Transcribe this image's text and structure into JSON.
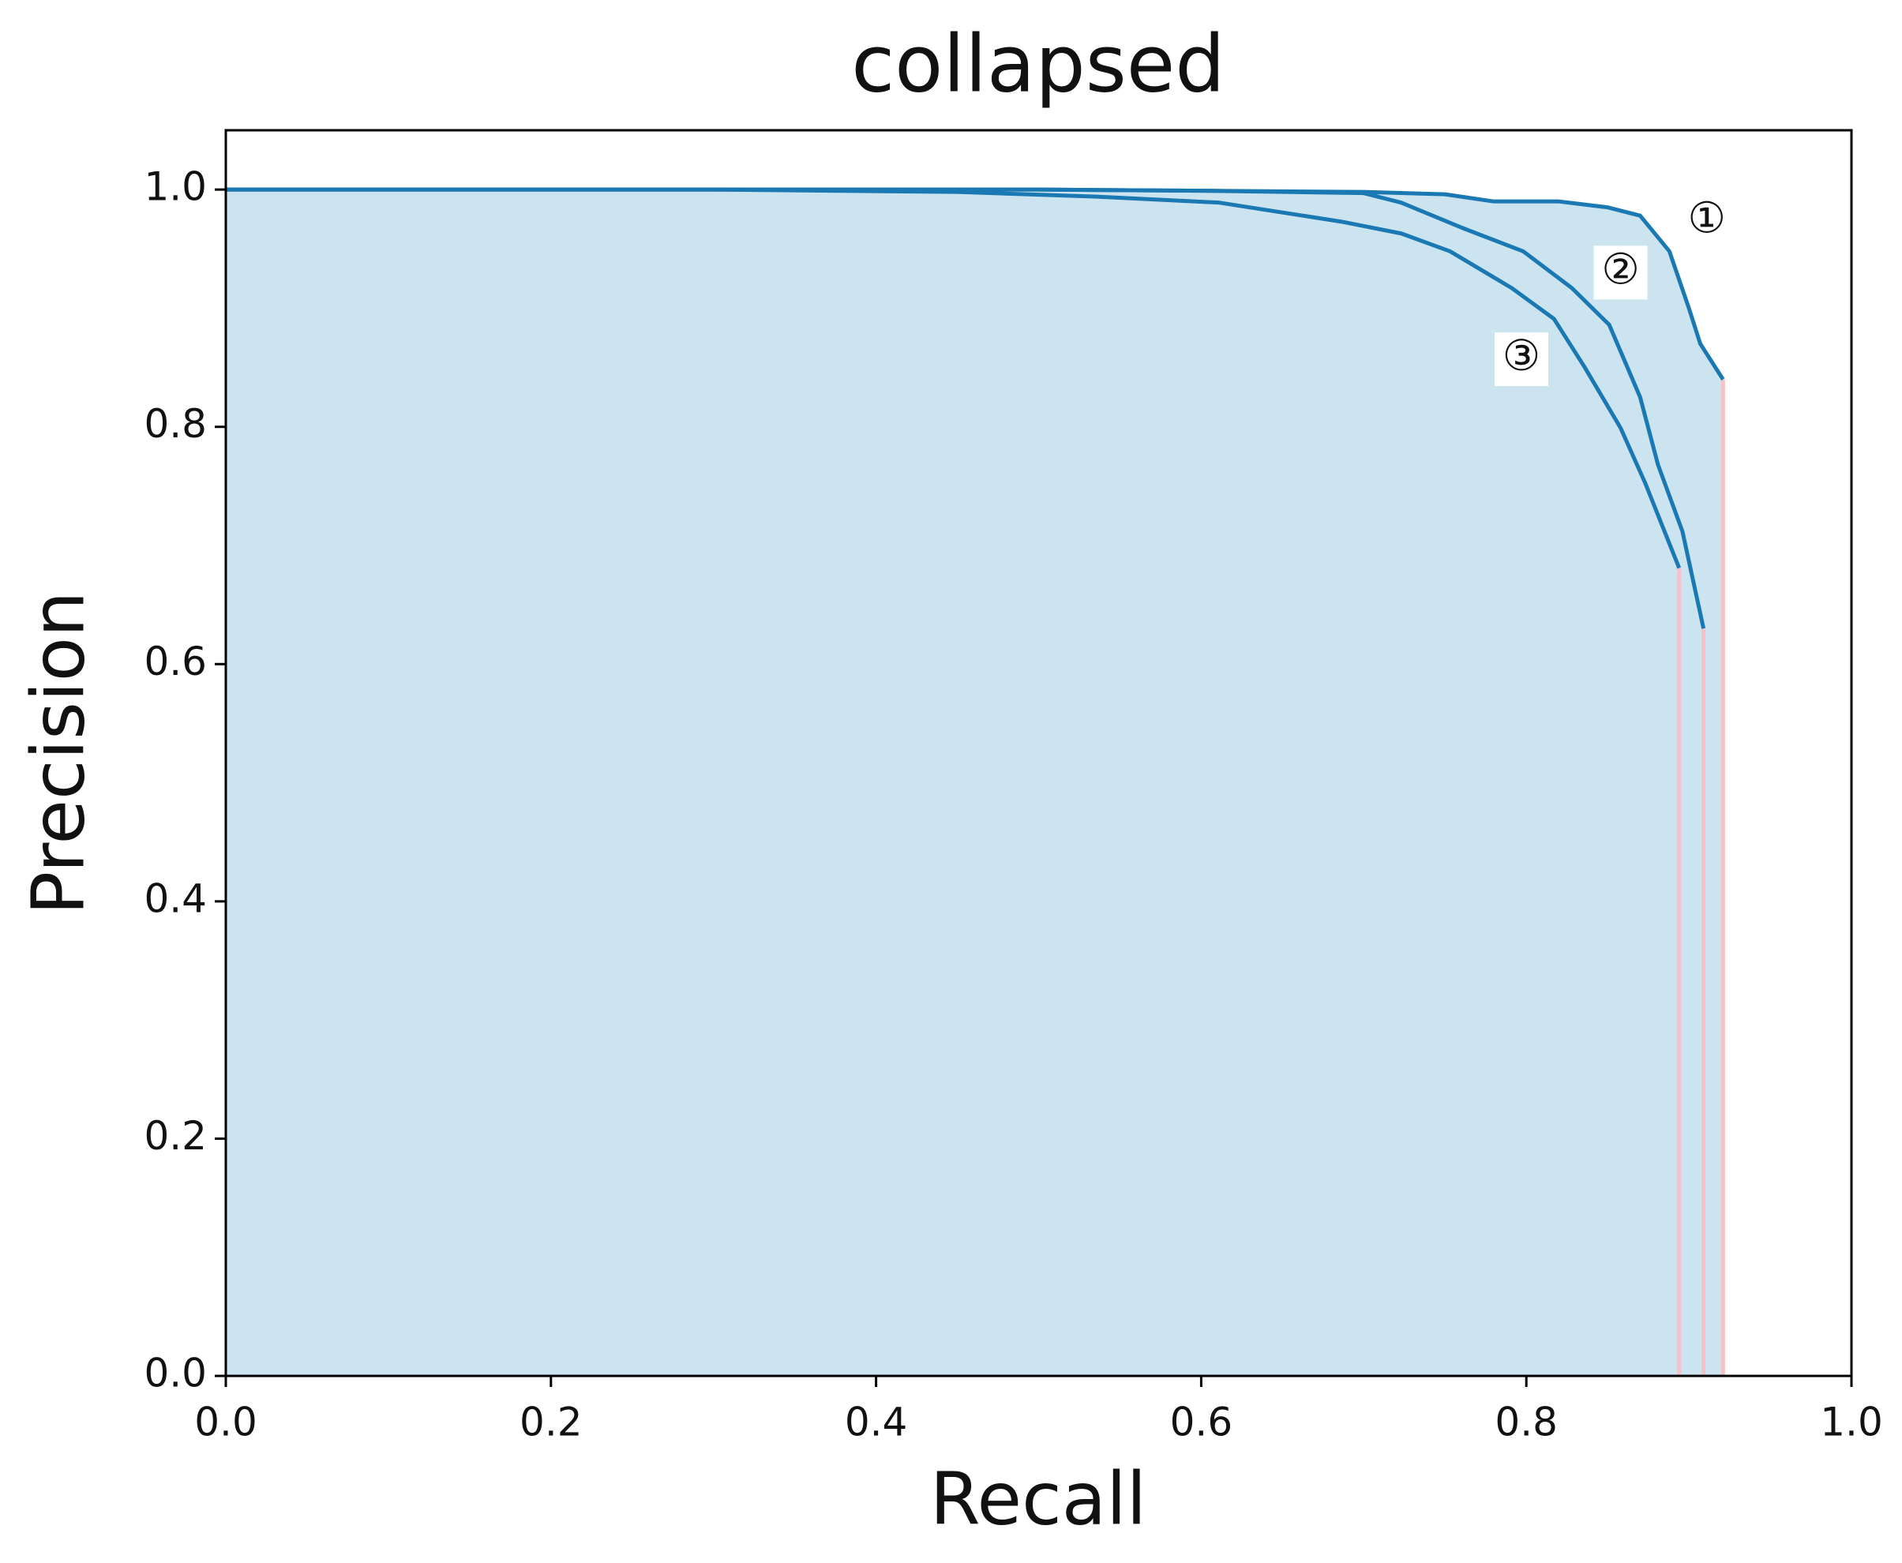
{
  "chart_data": {
    "type": "line",
    "title": "collapsed",
    "x_label": "Recall",
    "y_label": "Precision",
    "xlim": [
      0,
      1
    ],
    "ylim": [
      0,
      1.05
    ],
    "xticks": [
      {
        "value": 0,
        "label": "0.0"
      },
      {
        "value": 0.2,
        "label": "0.2"
      },
      {
        "value": 0.4,
        "label": "0.4"
      },
      {
        "value": 0.6,
        "label": "0.6"
      },
      {
        "value": 0.8,
        "label": "0.8"
      },
      {
        "value": 1,
        "label": "1.0"
      }
    ],
    "yticks": [
      {
        "value": 0,
        "label": "0.0"
      },
      {
        "value": 0.2,
        "label": "0.2"
      },
      {
        "value": 0.4,
        "label": "0.4"
      },
      {
        "value": 0.6,
        "label": "0.6"
      },
      {
        "value": 0.8,
        "label": "0.8"
      },
      {
        "value": 1,
        "label": "1.0"
      }
    ],
    "fill_color": "#cce3f0",
    "drop_color": "#f4c2c8",
    "series": [
      {
        "color": "#1a78b2",
        "x": [
          0,
          0.3,
          0.5,
          0.6,
          0.7,
          0.75,
          0.78,
          0.82,
          0.85,
          0.87,
          0.888,
          0.9,
          0.907,
          0.921
        ],
        "values": [
          1.0,
          1.0,
          1.0,
          0.999,
          0.998,
          0.996,
          0.99,
          0.99,
          0.985,
          0.978,
          0.948,
          0.9,
          0.87,
          0.84
        ]
      },
      {
        "color": "#1a78b2",
        "x": [
          0,
          0.3,
          0.5,
          0.6,
          0.7,
          0.723,
          0.76,
          0.798,
          0.828,
          0.851,
          0.87,
          0.881,
          0.896,
          0.909
        ],
        "values": [
          1.0,
          1.0,
          1.0,
          0.999,
          0.997,
          0.989,
          0.968,
          0.948,
          0.917,
          0.886,
          0.825,
          0.768,
          0.712,
          0.63
        ]
      },
      {
        "color": "#1a78b2",
        "x": [
          0,
          0.3,
          0.45,
          0.536,
          0.611,
          0.686,
          0.723,
          0.753,
          0.791,
          0.817,
          0.836,
          0.858,
          0.873,
          0.894
        ],
        "values": [
          1.0,
          1.0,
          0.998,
          0.994,
          0.989,
          0.973,
          0.963,
          0.948,
          0.917,
          0.891,
          0.85,
          0.799,
          0.753,
          0.681
        ]
      }
    ],
    "annotations": [
      {
        "text": "①",
        "x": 0.911,
        "y": 0.973
      },
      {
        "text": "②",
        "x": 0.858,
        "y": 0.93
      },
      {
        "text": "③",
        "x": 0.797,
        "y": 0.857
      }
    ]
  }
}
